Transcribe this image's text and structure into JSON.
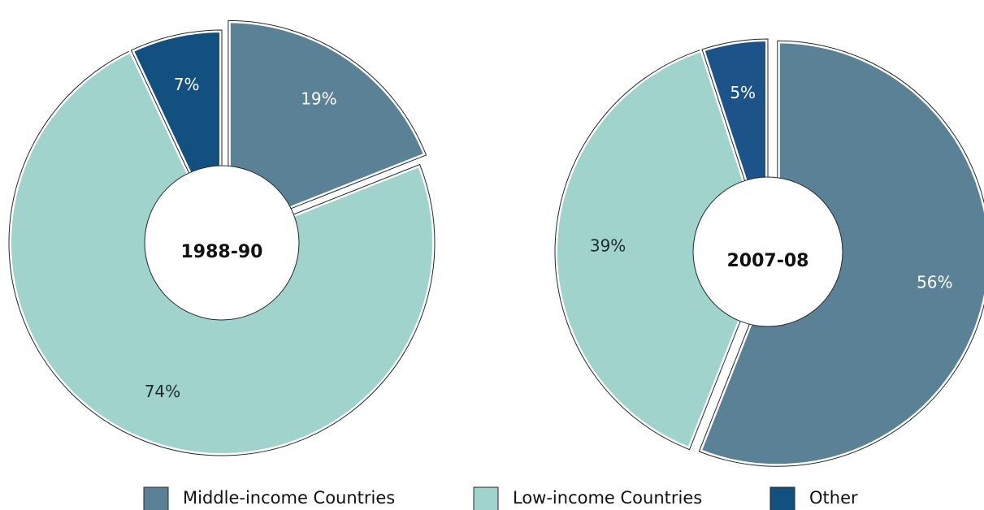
{
  "chart_data": [
    {
      "type": "donut",
      "title": "1988-90",
      "categories": [
        "Middle-income Countries",
        "Low-income Countries",
        "Other"
      ],
      "values": [
        19,
        74,
        7
      ],
      "value_labels": [
        "19%",
        "74%",
        "7%"
      ],
      "colors": [
        "#5b8196",
        "#a0d3cc",
        "#11507f"
      ],
      "exploded": [
        true,
        false,
        false
      ]
    },
    {
      "type": "donut",
      "title": "2007-08",
      "categories": [
        "Middle-income Countries",
        "Low-income Countries",
        "Other"
      ],
      "values": [
        56,
        39,
        5
      ],
      "value_labels": [
        "56%",
        "39%",
        "5%"
      ],
      "colors": [
        "#5b8196",
        "#a0d3cc",
        "#1c5489"
      ],
      "exploded": [
        true,
        false,
        false
      ]
    }
  ]
}
